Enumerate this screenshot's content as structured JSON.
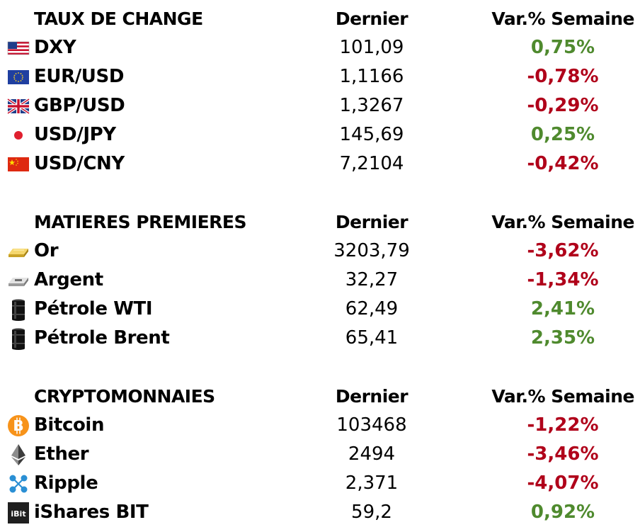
{
  "colors": {
    "positive": "#4f8a2e",
    "negative": "#b0001a"
  },
  "sections": [
    {
      "title": "TAUX DE CHANGE",
      "col_last": "Dernier",
      "col_var": "Var.% Semaine",
      "rows": [
        {
          "icon": "us-flag-icon",
          "name": "DXY",
          "last": "101,09",
          "var": "0,75%",
          "trend": "up"
        },
        {
          "icon": "eu-flag-icon",
          "name": "EUR/USD",
          "last": "1,1166",
          "var": "-0,78%",
          "trend": "down"
        },
        {
          "icon": "uk-flag-icon",
          "name": "GBP/USD",
          "last": "1,3267",
          "var": "-0,29%",
          "trend": "down"
        },
        {
          "icon": "japan-flag-icon",
          "name": "USD/JPY",
          "last": "145,69",
          "var": "0,25%",
          "trend": "up"
        },
        {
          "icon": "china-flag-icon",
          "name": "USD/CNY",
          "last": "7,2104",
          "var": "-0,42%",
          "trend": "down"
        }
      ]
    },
    {
      "title": "MATIERES PREMIERES",
      "col_last": "Dernier",
      "col_var": "Var.% Semaine",
      "rows": [
        {
          "icon": "gold-bar-icon",
          "name": "Or",
          "last": "3203,79",
          "var": "-3,62%",
          "trend": "down"
        },
        {
          "icon": "silver-bar-icon",
          "name": "Argent",
          "last": "32,27",
          "var": "-1,34%",
          "trend": "down"
        },
        {
          "icon": "oil-barrel-icon",
          "name": "Pétrole WTI",
          "last": "62,49",
          "var": "2,41%",
          "trend": "up"
        },
        {
          "icon": "oil-barrel-icon",
          "name": "Pétrole Brent",
          "last": "65,41",
          "var": "2,35%",
          "trend": "up"
        }
      ]
    },
    {
      "title": "CRYPTOMONNAIES",
      "col_last": "Dernier",
      "col_var": "Var.% Semaine",
      "rows": [
        {
          "icon": "bitcoin-icon",
          "name": "Bitcoin",
          "last": "103468",
          "var": "-1,22%",
          "trend": "down"
        },
        {
          "icon": "ethereum-icon",
          "name": "Ether",
          "last": "2494",
          "var": "-3,46%",
          "trend": "down"
        },
        {
          "icon": "ripple-icon",
          "name": "Ripple",
          "last": "2,371",
          "var": "-4,07%",
          "trend": "down"
        },
        {
          "icon": "ishares-bit-icon",
          "name": "iShares BIT",
          "last": "59,2",
          "var": "0,92%",
          "trend": "up",
          "icon_text": "iBit"
        }
      ]
    }
  ]
}
